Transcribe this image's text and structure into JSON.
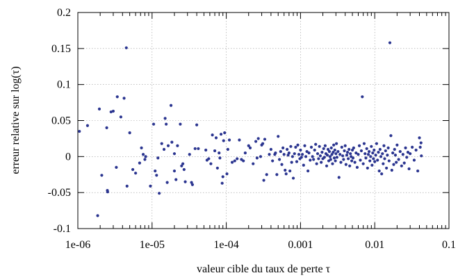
{
  "chart_data": {
    "type": "scatter",
    "xlabel": "valeur cible du taux de perte τ",
    "ylabel": "erreur relative sur log(τ)",
    "xscale": "log",
    "xlim": [
      1e-06,
      0.1
    ],
    "ylim": [
      -0.1,
      0.2
    ],
    "grid": true,
    "colors": {
      "points": "#2b3590"
    },
    "x_ticks": [
      {
        "v": 1e-06,
        "label": "1e-06"
      },
      {
        "v": 1e-05,
        "label": "1e-05"
      },
      {
        "v": 0.0001,
        "label": "1e-04"
      },
      {
        "v": 0.001,
        "label": "0.001"
      },
      {
        "v": 0.01,
        "label": "0.01"
      },
      {
        "v": 0.1,
        "label": "0.1"
      }
    ],
    "y_ticks": [
      {
        "v": -0.1,
        "label": "-0.1"
      },
      {
        "v": -0.05,
        "label": "-0.05"
      },
      {
        "v": 0,
        "label": "0"
      },
      {
        "v": 0.05,
        "label": "0.05"
      },
      {
        "v": 0.1,
        "label": "0.1"
      },
      {
        "v": 0.15,
        "label": "0.15"
      },
      {
        "v": 0.2,
        "label": "0.2"
      }
    ],
    "points": [
      [
        1.05e-06,
        0.035
      ],
      [
        1.35e-06,
        0.043
      ],
      [
        1.85e-06,
        -0.082
      ],
      [
        1.95e-06,
        0.066
      ],
      [
        2.1e-06,
        -0.026
      ],
      [
        2.45e-06,
        0.04
      ],
      [
        2.5e-06,
        -0.047
      ],
      [
        2.52e-06,
        -0.049
      ],
      [
        2.8e-06,
        0.062
      ],
      [
        3e-06,
        0.063
      ],
      [
        3.3e-06,
        -0.015
      ],
      [
        3.4e-06,
        0.083
      ],
      [
        3.8e-06,
        0.055
      ],
      [
        4.2e-06,
        0.081
      ],
      [
        4.5e-06,
        0.151
      ],
      [
        4.6e-06,
        -0.041
      ],
      [
        5e-06,
        0.033
      ],
      [
        5.5e-06,
        -0.018
      ],
      [
        6e-06,
        -0.023
      ],
      [
        6.8e-06,
        -0.009
      ],
      [
        7.2e-06,
        0.012
      ],
      [
        7.6e-06,
        0.003
      ],
      [
        8e-06,
        -0.004
      ],
      [
        8.2e-06,
        0.0
      ],
      [
        9.5e-06,
        -0.041
      ],
      [
        1.05e-05,
        0.045
      ],
      [
        1.1e-05,
        -0.02
      ],
      [
        1.15e-05,
        -0.026
      ],
      [
        1.2e-05,
        -0.002
      ],
      [
        1.25e-05,
        -0.051
      ],
      [
        1.35e-05,
        0.018
      ],
      [
        1.45e-05,
        0.01
      ],
      [
        1.5e-05,
        0.053
      ],
      [
        1.55e-05,
        0.045
      ],
      [
        1.6e-05,
        -0.036
      ],
      [
        1.65e-05,
        0.015
      ],
      [
        1.8e-05,
        0.071
      ],
      [
        1.85e-05,
        0.02
      ],
      [
        2e-05,
        0.004
      ],
      [
        2e-05,
        -0.02
      ],
      [
        2.1e-05,
        -0.032
      ],
      [
        2.2e-05,
        0.015
      ],
      [
        2.4e-05,
        0.045
      ],
      [
        2.5e-05,
        -0.013
      ],
      [
        2.6e-05,
        -0.01
      ],
      [
        2.7e-05,
        -0.018
      ],
      [
        2.8e-05,
        -0.035
      ],
      [
        3.2e-05,
        0.003
      ],
      [
        3.4e-05,
        -0.036
      ],
      [
        3.5e-05,
        -0.039
      ],
      [
        3.8e-05,
        0.011
      ],
      [
        4e-05,
        0.044
      ],
      [
        4.2e-05,
        0.011
      ],
      [
        5.3e-05,
        0.009
      ],
      [
        5.5e-05,
        -0.005
      ],
      [
        5.8e-05,
        -0.003
      ],
      [
        6.2e-05,
        -0.01
      ],
      [
        6.5e-05,
        0.03
      ],
      [
        7e-05,
        0.008
      ],
      [
        7.3e-05,
        0.026
      ],
      [
        7.6e-05,
        -0.016
      ],
      [
        8e-05,
        0.005
      ],
      [
        8.2e-05,
        -0.002
      ],
      [
        8.5e-05,
        0.031
      ],
      [
        8.8e-05,
        -0.037
      ],
      [
        9e-05,
        -0.028
      ],
      [
        9.2e-05,
        0.022
      ],
      [
        9.5e-05,
        0.033
      ],
      [
        0.000102,
        -0.024
      ],
      [
        0.000105,
        0.01
      ],
      [
        0.00011,
        0.023
      ],
      [
        0.00012,
        -0.008
      ],
      [
        0.00013,
        -0.006
      ],
      [
        0.00014,
        -0.003
      ],
      [
        0.00015,
        0.023
      ],
      [
        0.00016,
        -0.004
      ],
      [
        0.00017,
        -0.006
      ],
      [
        0.00018,
        0.005
      ],
      [
        0.0002,
        0.015
      ],
      [
        0.00021,
        0.012
      ],
      [
        0.00023,
        -0.01
      ],
      [
        0.00025,
        0.021
      ],
      [
        0.00026,
        -0.002
      ],
      [
        0.00027,
        0.025
      ],
      [
        0.00029,
        0.0
      ],
      [
        0.0003,
        0.016
      ],
      [
        0.00031,
        0.018
      ],
      [
        0.00032,
        -0.033
      ],
      [
        0.00033,
        0.024
      ],
      [
        0.00035,
        -0.025
      ],
      [
        0.00038,
        0.003
      ],
      [
        0.0004,
        0.01
      ],
      [
        0.00042,
        -0.006
      ],
      [
        0.00045,
        0.003
      ],
      [
        0.00046,
        0.005
      ],
      [
        0.00048,
        -0.025
      ],
      [
        0.0005,
        0.028
      ],
      [
        0.00052,
        -0.004
      ],
      [
        0.00054,
        0.007
      ],
      [
        0.00056,
        -0.011
      ],
      [
        0.00058,
        0.012
      ],
      [
        0.0006,
        0.003
      ],
      [
        0.00062,
        -0.019
      ],
      [
        0.00064,
        -0.024
      ],
      [
        0.00066,
        0.01
      ],
      [
        0.00068,
        0.002
      ],
      [
        0.0007,
        0.005
      ],
      [
        0.00072,
        -0.02
      ],
      [
        0.00074,
        0.014
      ],
      [
        0.00076,
        -0.008
      ],
      [
        0.00078,
        0.0
      ],
      [
        0.0008,
        -0.03
      ],
      [
        0.00083,
        0.004
      ],
      [
        0.00086,
        0.013
      ],
      [
        0.00089,
        -0.007
      ],
      [
        0.00092,
        0.016
      ],
      [
        0.00095,
        0.003
      ],
      [
        0.00098,
        -0.003
      ],
      [
        0.001,
        0.009
      ],
      [
        0.00103,
        -0.001
      ],
      [
        0.00106,
        0.003
      ],
      [
        0.0011,
        -0.012
      ],
      [
        0.00114,
        0.015
      ],
      [
        0.00118,
        0.0
      ],
      [
        0.00122,
        0.007
      ],
      [
        0.00126,
        -0.02
      ],
      [
        0.0013,
        0.005
      ],
      [
        0.00135,
        -0.005
      ],
      [
        0.0014,
        0.013
      ],
      [
        0.00145,
        0.0
      ],
      [
        0.0015,
        -0.004
      ],
      [
        0.00155,
        0.009
      ],
      [
        0.0016,
        0.017
      ],
      [
        0.00165,
        -0.01
      ],
      [
        0.0017,
        0.004
      ],
      [
        0.00175,
        -0.003
      ],
      [
        0.0018,
        0.014
      ],
      [
        0.00185,
        0.001
      ],
      [
        0.0019,
        -0.008
      ],
      [
        0.00195,
        0.006
      ],
      [
        0.002,
        -0.003
      ],
      [
        0.00205,
        0.011
      ],
      [
        0.0021,
        -0.001
      ],
      [
        0.00215,
        0.015
      ],
      [
        0.0022,
        0.004
      ],
      [
        0.00225,
        -0.013
      ],
      [
        0.0023,
        0.002
      ],
      [
        0.00235,
        0.01
      ],
      [
        0.0024,
        -0.006
      ],
      [
        0.00245,
        0.007
      ],
      [
        0.0025,
        0.0
      ],
      [
        0.00255,
        -0.004
      ],
      [
        0.0026,
        0.012
      ],
      [
        0.00265,
        0.003
      ],
      [
        0.0027,
        -0.01
      ],
      [
        0.00275,
        0.006
      ],
      [
        0.0028,
        0.016
      ],
      [
        0.00285,
        -0.002
      ],
      [
        0.0029,
        0.009
      ],
      [
        0.00295,
        -0.006
      ],
      [
        0.003,
        0.004
      ],
      [
        0.00305,
        0.018
      ],
      [
        0.0031,
        -0.001
      ],
      [
        0.0032,
        0.007
      ],
      [
        0.0033,
        -0.029
      ],
      [
        0.0034,
        0.003
      ],
      [
        0.0035,
        -0.008
      ],
      [
        0.0036,
        0.013
      ],
      [
        0.0037,
        0.001
      ],
      [
        0.0038,
        -0.004
      ],
      [
        0.0039,
        0.008
      ],
      [
        0.004,
        0.015
      ],
      [
        0.0041,
        -0.011
      ],
      [
        0.0042,
        0.002
      ],
      [
        0.0043,
        0.006
      ],
      [
        0.0044,
        -0.003
      ],
      [
        0.0045,
        0.01
      ],
      [
        0.0046,
        -0.013
      ],
      [
        0.0047,
        0.004
      ],
      [
        0.0048,
        0.0
      ],
      [
        0.0049,
        -0.006
      ],
      [
        0.005,
        0.009
      ],
      [
        0.0051,
        -0.002
      ],
      [
        0.0052,
        0.012
      ],
      [
        0.0054,
        -0.008
      ],
      [
        0.0056,
        0.005
      ],
      [
        0.0058,
        -0.015
      ],
      [
        0.006,
        0.003
      ],
      [
        0.0062,
        0.015
      ],
      [
        0.0064,
        -0.005
      ],
      [
        0.0066,
        0.008
      ],
      [
        0.0068,
        0.083
      ],
      [
        0.007,
        -0.01
      ],
      [
        0.0072,
        0.018
      ],
      [
        0.0074,
        0.004
      ],
      [
        0.0076,
        -0.002
      ],
      [
        0.0078,
        0.011
      ],
      [
        0.008,
        -0.016
      ],
      [
        0.0082,
        0.003
      ],
      [
        0.0084,
        0.007
      ],
      [
        0.0086,
        -0.006
      ],
      [
        0.0088,
        0.0
      ],
      [
        0.009,
        0.014
      ],
      [
        0.0092,
        -0.012
      ],
      [
        0.0094,
        0.005
      ],
      [
        0.0096,
        -0.003
      ],
      [
        0.0098,
        0.009
      ],
      [
        0.01,
        -0.007
      ],
      [
        0.0103,
        0.002
      ],
      [
        0.0106,
        0.018
      ],
      [
        0.0109,
        -0.005
      ],
      [
        0.0112,
        0.006
      ],
      [
        0.0115,
        -0.02
      ],
      [
        0.0118,
        0.01
      ],
      [
        0.0121,
        0.0
      ],
      [
        0.0124,
        -0.024
      ],
      [
        0.0127,
        0.004
      ],
      [
        0.013,
        -0.01
      ],
      [
        0.0133,
        0.015
      ],
      [
        0.0136,
        -0.003
      ],
      [
        0.014,
        0.008
      ],
      [
        0.0144,
        -0.016
      ],
      [
        0.0148,
        0.002
      ],
      [
        0.0152,
        0.012
      ],
      [
        0.0156,
        -0.006
      ],
      [
        0.016,
        0.158
      ],
      [
        0.0165,
        0.029
      ],
      [
        0.017,
        -0.019
      ],
      [
        0.0175,
        0.005
      ],
      [
        0.018,
        -0.011
      ],
      [
        0.0185,
        0.01
      ],
      [
        0.019,
        0.002
      ],
      [
        0.0195,
        -0.008
      ],
      [
        0.02,
        0.016
      ],
      [
        0.021,
        -0.004
      ],
      [
        0.022,
        0.007
      ],
      [
        0.023,
        -0.013
      ],
      [
        0.024,
        0.003
      ],
      [
        0.025,
        -0.009
      ],
      [
        0.026,
        0.012
      ],
      [
        0.027,
        -0.001
      ],
      [
        0.028,
        0.006
      ],
      [
        0.029,
        -0.017
      ],
      [
        0.03,
        0.004
      ],
      [
        0.032,
        0.013
      ],
      [
        0.034,
        -0.005
      ],
      [
        0.036,
        0.009
      ],
      [
        0.038,
        -0.02
      ],
      [
        0.04,
        0.026
      ],
      [
        0.041,
        0.013
      ],
      [
        0.042,
        0.019
      ],
      [
        0.0425,
        0.001
      ]
    ]
  }
}
